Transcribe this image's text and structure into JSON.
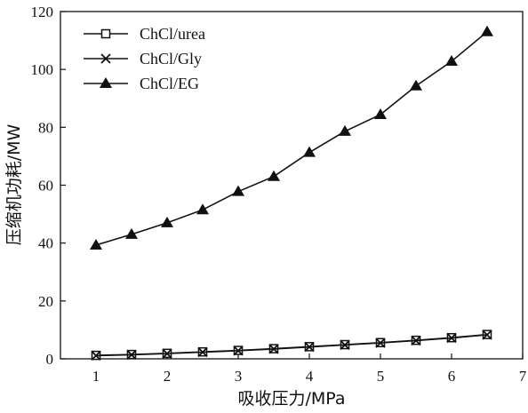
{
  "chart_data": {
    "type": "line",
    "title": "",
    "xlabel": "吸收压力/MPa",
    "ylabel": "压缩机功耗/MW",
    "xlim": [
      0.5,
      7
    ],
    "ylim": [
      0,
      120
    ],
    "x_ticks": [
      1,
      2,
      3,
      4,
      5,
      6,
      7
    ],
    "y_ticks": [
      0,
      20,
      40,
      60,
      80,
      100,
      120
    ],
    "grid": false,
    "legend_position": "top-left",
    "x": [
      1,
      1.5,
      2,
      2.5,
      3,
      3.5,
      4,
      4.5,
      5,
      5.5,
      6,
      6.5
    ],
    "series": [
      {
        "name": "ChCl/urea",
        "marker": "square-open",
        "color": "#111111",
        "values": [
          1.2,
          1.5,
          1.9,
          2.4,
          2.9,
          3.5,
          4.2,
          4.9,
          5.6,
          6.4,
          7.3,
          8.4
        ]
      },
      {
        "name": "ChCl/Gly",
        "marker": "x",
        "color": "#111111",
        "values": [
          1.1,
          1.4,
          1.8,
          2.3,
          2.8,
          3.4,
          4.1,
          4.8,
          5.5,
          6.3,
          7.2,
          8.3
        ]
      },
      {
        "name": "ChCl/EG",
        "marker": "triangle-filled",
        "color": "#111111",
        "values": [
          39.3,
          43.0,
          47.0,
          51.5,
          57.8,
          63.0,
          71.3,
          78.6,
          84.4,
          94.3,
          102.8,
          113.0
        ]
      }
    ]
  }
}
